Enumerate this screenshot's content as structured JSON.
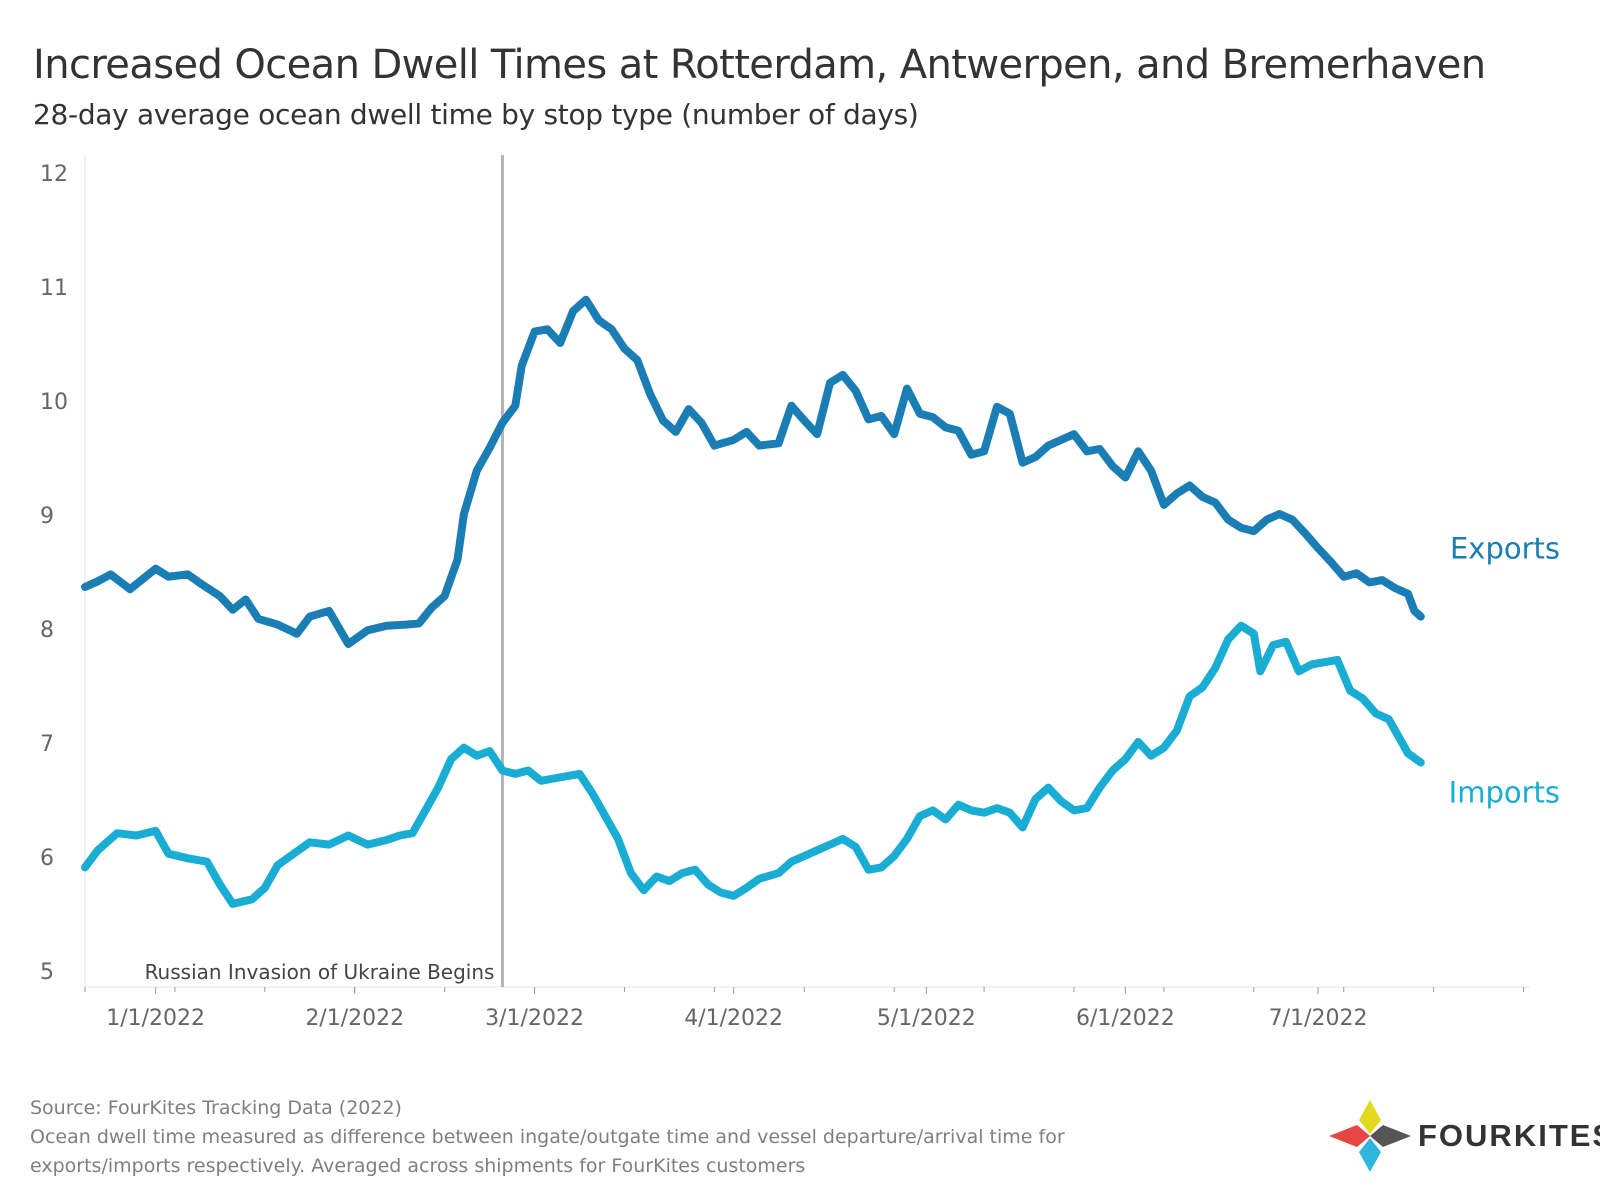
{
  "title": "Increased Ocean Dwell Times at Rotterdam, Antwerpen, and Bremerhaven",
  "subtitle": "28-day average ocean dwell time by stop type (number of days)",
  "source": "Source: FourKites Tracking Data (2022)",
  "note_line1": "Ocean dwell time measured as difference between ingate/outgate time and vessel departure/arrival time for",
  "note_line2": "exports/imports respectively. Averaged across shipments for FourKites customers",
  "logo_text": "FOURKITES",
  "colors": {
    "exports": "#1a7db4",
    "imports": "#19add4",
    "annotation_line": "#b3b3b3",
    "axis_text": "#666666"
  },
  "chart_data": {
    "type": "line",
    "x_type": "date",
    "ylim": [
      5,
      12
    ],
    "yticks": [
      5,
      6,
      7,
      8,
      9,
      10,
      11,
      12
    ],
    "xlim": [
      "2021-12-21",
      "2022-08-03"
    ],
    "xticks": [
      {
        "date": "2022-01-01",
        "label": "1/1/2022"
      },
      {
        "date": "2022-02-01",
        "label": "2/1/2022"
      },
      {
        "date": "2022-03-01",
        "label": "3/1/2022"
      },
      {
        "date": "2022-04-01",
        "label": "4/1/2022"
      },
      {
        "date": "2022-05-01",
        "label": "5/1/2022"
      },
      {
        "date": "2022-06-01",
        "label": "6/1/2022"
      },
      {
        "date": "2022-07-01",
        "label": "7/1/2022"
      }
    ],
    "grid": false,
    "annotation": {
      "date": "2022-02-24",
      "label": "Russian Invasion of Ukraine Begins"
    },
    "series": [
      {
        "name": "Exports",
        "points": [
          [
            "2021-12-21",
            8.36
          ],
          [
            "2021-12-23",
            8.41
          ],
          [
            "2021-12-25",
            8.47
          ],
          [
            "2021-12-28",
            8.34
          ],
          [
            "2022-01-01",
            8.52
          ],
          [
            "2022-01-03",
            8.45
          ],
          [
            "2022-01-06",
            8.47
          ],
          [
            "2022-01-08",
            8.39
          ],
          [
            "2022-01-11",
            8.28
          ],
          [
            "2022-01-13",
            8.16
          ],
          [
            "2022-01-15",
            8.25
          ],
          [
            "2022-01-17",
            8.08
          ],
          [
            "2022-01-20",
            8.03
          ],
          [
            "2022-01-23",
            7.95
          ],
          [
            "2022-01-25",
            8.1
          ],
          [
            "2022-01-28",
            8.15
          ],
          [
            "2022-01-31",
            7.86
          ],
          [
            "2022-02-03",
            7.98
          ],
          [
            "2022-02-06",
            8.02
          ],
          [
            "2022-02-09",
            8.03
          ],
          [
            "2022-02-11",
            8.04
          ],
          [
            "2022-02-13",
            8.18
          ],
          [
            "2022-02-15",
            8.28
          ],
          [
            "2022-02-17",
            8.6
          ],
          [
            "2022-02-18",
            9.0
          ],
          [
            "2022-02-20",
            9.38
          ],
          [
            "2022-02-22",
            9.58
          ],
          [
            "2022-02-24",
            9.8
          ],
          [
            "2022-02-26",
            9.95
          ],
          [
            "2022-02-27",
            10.3
          ],
          [
            "2022-03-01",
            10.6
          ],
          [
            "2022-03-03",
            10.62
          ],
          [
            "2022-03-05",
            10.5
          ],
          [
            "2022-03-07",
            10.78
          ],
          [
            "2022-03-09",
            10.88
          ],
          [
            "2022-03-11",
            10.7
          ],
          [
            "2022-03-13",
            10.62
          ],
          [
            "2022-03-15",
            10.45
          ],
          [
            "2022-03-17",
            10.35
          ],
          [
            "2022-03-19",
            10.05
          ],
          [
            "2022-03-21",
            9.82
          ],
          [
            "2022-03-23",
            9.72
          ],
          [
            "2022-03-25",
            9.92
          ],
          [
            "2022-03-27",
            9.8
          ],
          [
            "2022-03-29",
            9.6
          ],
          [
            "2022-04-01",
            9.65
          ],
          [
            "2022-04-03",
            9.72
          ],
          [
            "2022-04-05",
            9.6
          ],
          [
            "2022-04-08",
            9.62
          ],
          [
            "2022-04-10",
            9.95
          ],
          [
            "2022-04-12",
            9.82
          ],
          [
            "2022-04-14",
            9.7
          ],
          [
            "2022-04-16",
            10.15
          ],
          [
            "2022-04-18",
            10.22
          ],
          [
            "2022-04-20",
            10.08
          ],
          [
            "2022-04-22",
            9.83
          ],
          [
            "2022-04-24",
            9.86
          ],
          [
            "2022-04-26",
            9.7
          ],
          [
            "2022-04-28",
            10.1
          ],
          [
            "2022-04-30",
            9.88
          ],
          [
            "2022-05-02",
            9.85
          ],
          [
            "2022-05-04",
            9.76
          ],
          [
            "2022-05-06",
            9.73
          ],
          [
            "2022-05-08",
            9.52
          ],
          [
            "2022-05-10",
            9.55
          ],
          [
            "2022-05-12",
            9.94
          ],
          [
            "2022-05-14",
            9.88
          ],
          [
            "2022-05-16",
            9.45
          ],
          [
            "2022-05-18",
            9.5
          ],
          [
            "2022-05-20",
            9.6
          ],
          [
            "2022-05-22",
            9.65
          ],
          [
            "2022-05-24",
            9.7
          ],
          [
            "2022-05-26",
            9.55
          ],
          [
            "2022-05-28",
            9.57
          ],
          [
            "2022-05-30",
            9.42
          ],
          [
            "2022-06-01",
            9.32
          ],
          [
            "2022-06-03",
            9.55
          ],
          [
            "2022-06-05",
            9.38
          ],
          [
            "2022-06-07",
            9.08
          ],
          [
            "2022-06-09",
            9.18
          ],
          [
            "2022-06-11",
            9.25
          ],
          [
            "2022-06-13",
            9.15
          ],
          [
            "2022-06-15",
            9.1
          ],
          [
            "2022-06-17",
            8.95
          ],
          [
            "2022-06-19",
            8.88
          ],
          [
            "2022-06-21",
            8.85
          ],
          [
            "2022-06-23",
            8.95
          ],
          [
            "2022-06-25",
            9.0
          ],
          [
            "2022-06-27",
            8.95
          ],
          [
            "2022-06-29",
            8.83
          ],
          [
            "2022-07-01",
            8.7
          ],
          [
            "2022-07-03",
            8.58
          ],
          [
            "2022-07-05",
            8.45
          ],
          [
            "2022-07-07",
            8.48
          ],
          [
            "2022-07-09",
            8.4
          ],
          [
            "2022-07-11",
            8.42
          ],
          [
            "2022-07-13",
            8.35
          ],
          [
            "2022-07-15",
            8.3
          ],
          [
            "2022-07-16",
            8.15
          ],
          [
            "2022-07-17",
            8.1
          ]
        ]
      },
      {
        "name": "Imports",
        "points": [
          [
            "2021-12-21",
            5.9
          ],
          [
            "2021-12-23",
            6.05
          ],
          [
            "2021-12-26",
            6.2
          ],
          [
            "2021-12-29",
            6.18
          ],
          [
            "2022-01-01",
            6.22
          ],
          [
            "2022-01-03",
            6.02
          ],
          [
            "2022-01-06",
            5.98
          ],
          [
            "2022-01-09",
            5.95
          ],
          [
            "2022-01-11",
            5.75
          ],
          [
            "2022-01-13",
            5.58
          ],
          [
            "2022-01-16",
            5.62
          ],
          [
            "2022-01-18",
            5.72
          ],
          [
            "2022-01-20",
            5.92
          ],
          [
            "2022-01-22",
            6.0
          ],
          [
            "2022-01-25",
            6.12
          ],
          [
            "2022-01-28",
            6.1
          ],
          [
            "2022-01-31",
            6.18
          ],
          [
            "2022-02-03",
            6.1
          ],
          [
            "2022-02-06",
            6.14
          ],
          [
            "2022-02-08",
            6.18
          ],
          [
            "2022-02-10",
            6.2
          ],
          [
            "2022-02-12",
            6.4
          ],
          [
            "2022-02-14",
            6.6
          ],
          [
            "2022-02-16",
            6.85
          ],
          [
            "2022-02-18",
            6.95
          ],
          [
            "2022-02-20",
            6.88
          ],
          [
            "2022-02-22",
            6.92
          ],
          [
            "2022-02-24",
            6.75
          ],
          [
            "2022-02-26",
            6.72
          ],
          [
            "2022-02-28",
            6.75
          ],
          [
            "2022-03-02",
            6.66
          ],
          [
            "2022-03-04",
            6.68
          ],
          [
            "2022-03-06",
            6.7
          ],
          [
            "2022-03-08",
            6.72
          ],
          [
            "2022-03-10",
            6.55
          ],
          [
            "2022-03-12",
            6.35
          ],
          [
            "2022-03-14",
            6.15
          ],
          [
            "2022-03-16",
            5.85
          ],
          [
            "2022-03-18",
            5.7
          ],
          [
            "2022-03-20",
            5.82
          ],
          [
            "2022-03-22",
            5.78
          ],
          [
            "2022-03-24",
            5.85
          ],
          [
            "2022-03-26",
            5.88
          ],
          [
            "2022-03-28",
            5.75
          ],
          [
            "2022-03-30",
            5.68
          ],
          [
            "2022-04-01",
            5.65
          ],
          [
            "2022-04-03",
            5.72
          ],
          [
            "2022-04-05",
            5.8
          ],
          [
            "2022-04-08",
            5.85
          ],
          [
            "2022-04-10",
            5.95
          ],
          [
            "2022-04-12",
            6.0
          ],
          [
            "2022-04-14",
            6.05
          ],
          [
            "2022-04-16",
            6.1
          ],
          [
            "2022-04-18",
            6.15
          ],
          [
            "2022-04-20",
            6.08
          ],
          [
            "2022-04-22",
            5.88
          ],
          [
            "2022-04-24",
            5.9
          ],
          [
            "2022-04-26",
            6.0
          ],
          [
            "2022-04-28",
            6.15
          ],
          [
            "2022-04-30",
            6.35
          ],
          [
            "2022-05-02",
            6.4
          ],
          [
            "2022-05-04",
            6.32
          ],
          [
            "2022-05-06",
            6.45
          ],
          [
            "2022-05-08",
            6.4
          ],
          [
            "2022-05-10",
            6.38
          ],
          [
            "2022-05-12",
            6.42
          ],
          [
            "2022-05-14",
            6.38
          ],
          [
            "2022-05-16",
            6.25
          ],
          [
            "2022-05-18",
            6.5
          ],
          [
            "2022-05-20",
            6.6
          ],
          [
            "2022-05-22",
            6.48
          ],
          [
            "2022-05-24",
            6.4
          ],
          [
            "2022-05-26",
            6.42
          ],
          [
            "2022-05-28",
            6.6
          ],
          [
            "2022-05-30",
            6.75
          ],
          [
            "2022-06-01",
            6.85
          ],
          [
            "2022-06-03",
            7.0
          ],
          [
            "2022-06-05",
            6.88
          ],
          [
            "2022-06-07",
            6.95
          ],
          [
            "2022-06-09",
            7.1
          ],
          [
            "2022-06-11",
            7.4
          ],
          [
            "2022-06-13",
            7.48
          ],
          [
            "2022-06-15",
            7.65
          ],
          [
            "2022-06-17",
            7.9
          ],
          [
            "2022-06-19",
            8.02
          ],
          [
            "2022-06-21",
            7.95
          ],
          [
            "2022-06-22",
            7.62
          ],
          [
            "2022-06-24",
            7.85
          ],
          [
            "2022-06-26",
            7.88
          ],
          [
            "2022-06-28",
            7.62
          ],
          [
            "2022-06-30",
            7.68
          ],
          [
            "2022-07-02",
            7.7
          ],
          [
            "2022-07-04",
            7.72
          ],
          [
            "2022-07-06",
            7.45
          ],
          [
            "2022-07-08",
            7.38
          ],
          [
            "2022-07-10",
            7.25
          ],
          [
            "2022-07-12",
            7.2
          ],
          [
            "2022-07-14",
            7.0
          ],
          [
            "2022-07-15",
            6.9
          ],
          [
            "2022-07-17",
            6.82
          ]
        ]
      }
    ]
  }
}
